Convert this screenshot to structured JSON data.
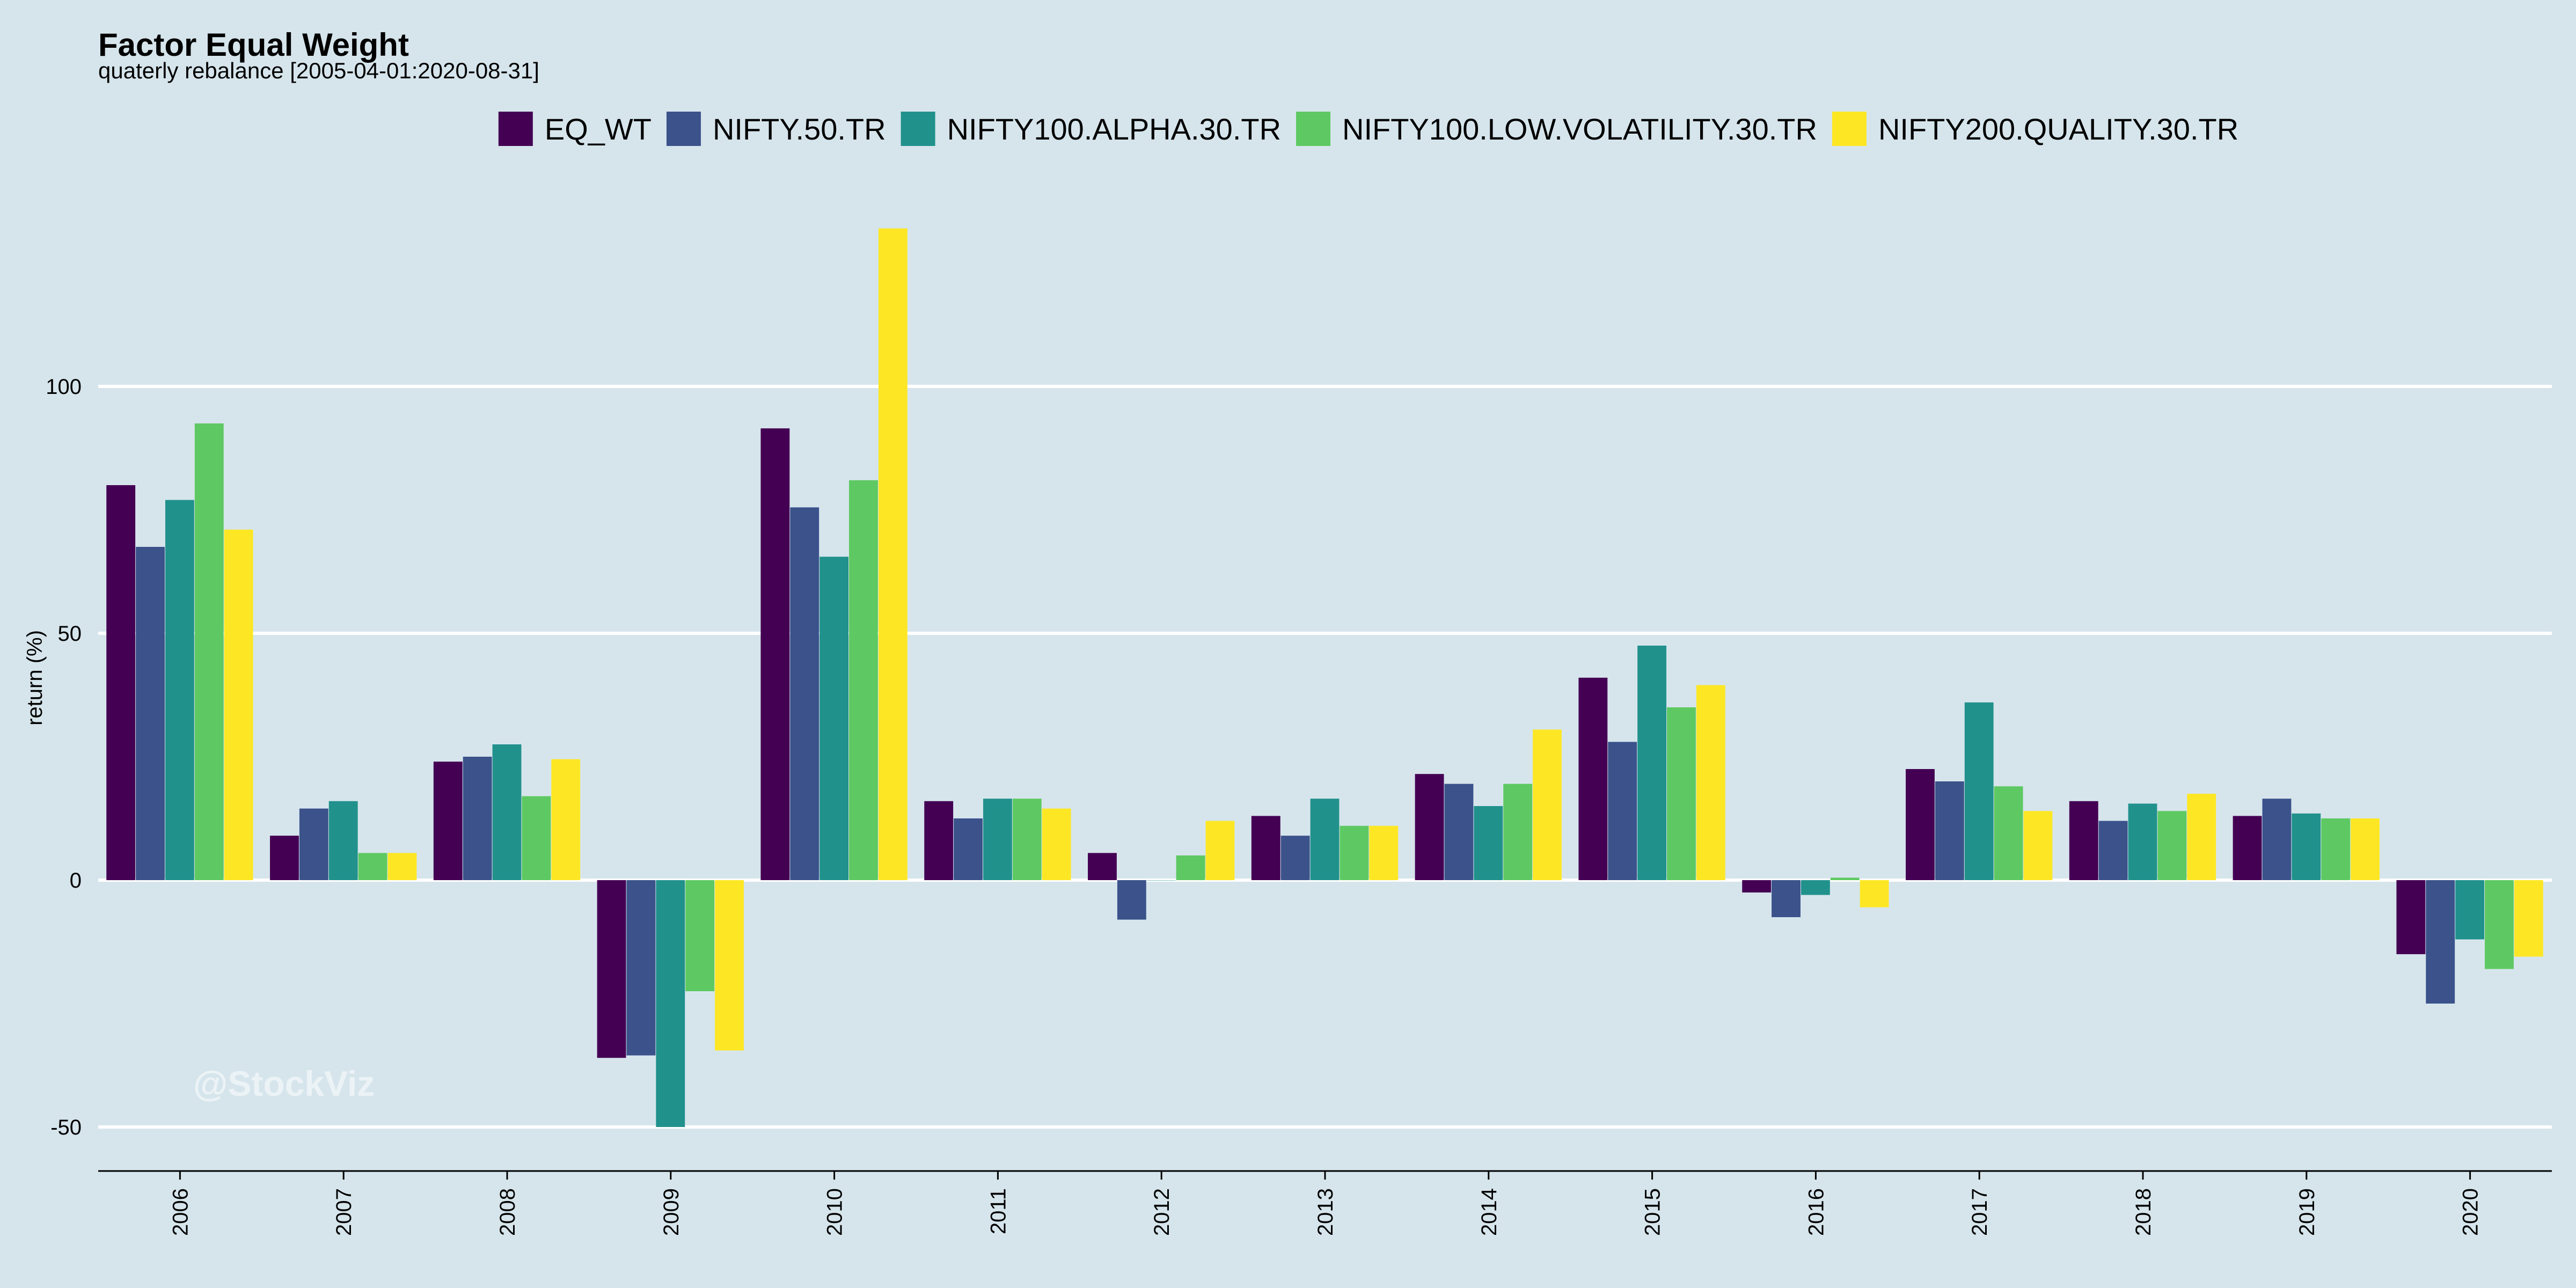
{
  "chart_data": {
    "type": "bar",
    "title": "Factor Equal Weight",
    "subtitle": "quaterly rebalance [2005-04-01:2020-08-31]",
    "xlabel": "",
    "ylabel": "return (%)",
    "ylim": [
      -59,
      133
    ],
    "yticks": [
      -50,
      0,
      50,
      100
    ],
    "grid": true,
    "legend_position": "top",
    "watermark": "@StockViz",
    "categories": [
      "2006",
      "2007",
      "2008",
      "2009",
      "2010",
      "2011",
      "2012",
      "2013",
      "2014",
      "2015",
      "2016",
      "2017",
      "2018",
      "2019",
      "2020"
    ],
    "series": [
      {
        "name": "EQ_WT",
        "color": "#440154",
        "values": [
          80,
          9,
          24,
          -36,
          91.5,
          16,
          5.5,
          13,
          21.5,
          41,
          -2.5,
          22.5,
          16,
          13,
          -15
        ]
      },
      {
        "name": "NIFTY.50.TR",
        "color": "#3b528b",
        "values": [
          67.5,
          14.5,
          25,
          -35.5,
          75.5,
          12.5,
          -8,
          9,
          19.5,
          28,
          -7.5,
          20,
          12,
          16.5,
          -25
        ]
      },
      {
        "name": "NIFTY100.ALPHA.30.TR",
        "color": "#21918c",
        "values": [
          77,
          16,
          27.5,
          -50,
          65.5,
          16.5,
          0,
          16.5,
          15,
          47.5,
          -3,
          36,
          15.5,
          13.5,
          -12
        ]
      },
      {
        "name": "NIFTY100.LOW.VOLATILITY.30.TR",
        "color": "#5ec962",
        "values": [
          92.5,
          5.5,
          17,
          -22.5,
          81,
          16.5,
          5,
          11,
          19.5,
          35,
          0.5,
          19,
          14,
          12.5,
          -18
        ]
      },
      {
        "name": "NIFTY200.QUALITY.30.TR",
        "color": "#fde725",
        "values": [
          71,
          5.5,
          24.5,
          -34.5,
          132,
          14.5,
          12,
          11,
          30.5,
          39.5,
          -5.5,
          14,
          17.5,
          12.5,
          -15.5
        ]
      }
    ]
  }
}
